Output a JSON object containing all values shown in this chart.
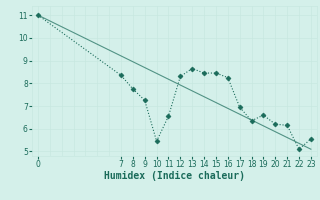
{
  "xlabel": "Humidex (Indice chaleur)",
  "ylabel": "",
  "bg_color": "#d4f0ea",
  "grid_color_major": "#c8e8e0",
  "grid_color_minor": "#e0f5f0",
  "line_color": "#1a6b5a",
  "x_data": [
    0,
    7,
    8,
    9,
    10,
    11,
    12,
    13,
    14,
    15,
    16,
    17,
    18,
    19,
    20,
    21,
    22,
    23
  ],
  "y_data": [
    11,
    8.35,
    7.75,
    7.25,
    5.45,
    6.55,
    8.3,
    8.65,
    8.45,
    8.45,
    8.25,
    6.95,
    6.35,
    6.6,
    6.2,
    6.15,
    5.1,
    5.55
  ],
  "trend_x": [
    0,
    23
  ],
  "trend_y": [
    11,
    5.1
  ],
  "xlim": [
    -0.5,
    23.5
  ],
  "ylim": [
    4.8,
    11.4
  ],
  "xticks": [
    0,
    7,
    8,
    9,
    10,
    11,
    12,
    13,
    14,
    15,
    16,
    17,
    18,
    19,
    20,
    21,
    22,
    23
  ],
  "yticks": [
    5,
    6,
    7,
    8,
    9,
    10,
    11
  ],
  "tick_fontsize": 5.5,
  "xlabel_fontsize": 7,
  "marker": "D",
  "marker_size": 2.5,
  "line_width": 0.8
}
